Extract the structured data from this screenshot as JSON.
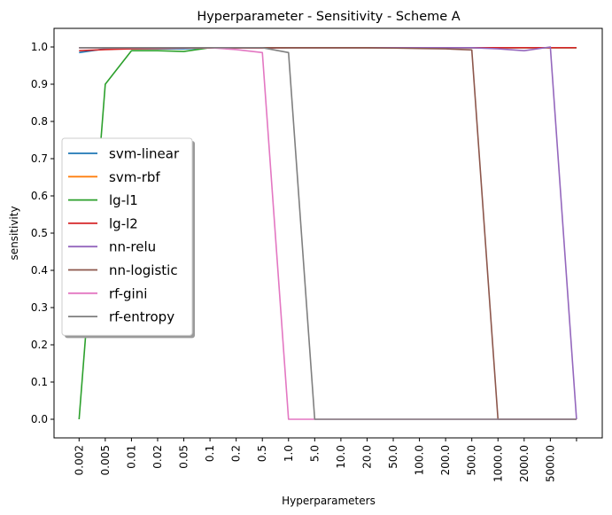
{
  "chart_data": {
    "type": "line",
    "title": "Hyperparameter - Sensitivity - Scheme A",
    "xlabel": "Hyperparameters",
    "ylabel": "sensitivity",
    "x_ticks": [
      "0.002",
      "0.005",
      "0.01",
      "0.02",
      "0.05",
      "0.1",
      "0.2",
      "0.5",
      "1.0",
      "5.0",
      "10.0",
      "20.0",
      "50.0",
      "100.0",
      "200.0",
      "500.0",
      "1000.0",
      "2000.0",
      "5000.0",
      ""
    ],
    "y_ticks": [
      "0.0",
      "0.1",
      "0.2",
      "0.3",
      "0.4",
      "0.5",
      "0.6",
      "0.7",
      "0.8",
      "0.9",
      "1.0"
    ],
    "ylim": [
      -0.05,
      1.05
    ],
    "grid": false,
    "legend_position": "center-left",
    "series": [
      {
        "name": "svm-linear",
        "color": "#1f77b4",
        "values": [
          0.985,
          0.995,
          0.995,
          0.995,
          0.995,
          0.998,
          0.998,
          0.998,
          0.998,
          0.998,
          0.998,
          0.998,
          0.998,
          0.998,
          0.998,
          0.998,
          0.998,
          0.998,
          0.998,
          0.998
        ]
      },
      {
        "name": "svm-rbf",
        "color": "#ff7f0e",
        "values": [
          0.998,
          0.998,
          0.998,
          0.998,
          0.998,
          0.998,
          0.998,
          0.998,
          0.998,
          0.998,
          0.998,
          0.998,
          0.998,
          0.998,
          0.998,
          0.998,
          0.998,
          0.998,
          0.998,
          0.998
        ]
      },
      {
        "name": "lg-l1",
        "color": "#2ca02c",
        "values": [
          0.0,
          0.9,
          0.99,
          0.99,
          0.988,
          0.998,
          0.998,
          0.998,
          0.998,
          0.998,
          0.998,
          0.998,
          0.998,
          0.998,
          0.998,
          0.998,
          0.998,
          0.998,
          0.998,
          0.998
        ]
      },
      {
        "name": "lg-l2",
        "color": "#d62728",
        "values": [
          0.99,
          0.993,
          0.995,
          0.996,
          0.997,
          0.997,
          0.997,
          0.997,
          0.998,
          0.998,
          0.998,
          0.998,
          0.998,
          0.998,
          0.998,
          0.998,
          0.998,
          0.998,
          0.998,
          0.998
        ]
      },
      {
        "name": "nn-relu",
        "color": "#9467bd",
        "values": [
          0.998,
          0.998,
          0.998,
          0.998,
          0.998,
          0.998,
          0.998,
          0.998,
          0.998,
          0.998,
          0.998,
          0.998,
          0.998,
          0.998,
          0.998,
          0.998,
          0.995,
          0.99,
          1.0,
          0.0
        ]
      },
      {
        "name": "nn-logistic",
        "color": "#8c564b",
        "values": [
          0.998,
          0.998,
          0.998,
          0.998,
          0.998,
          0.998,
          0.998,
          0.998,
          0.998,
          0.998,
          0.998,
          0.998,
          0.997,
          0.996,
          0.995,
          0.992,
          0.0,
          0.0,
          0.0,
          0.0
        ]
      },
      {
        "name": "rf-gini",
        "color": "#e377c2",
        "values": [
          0.998,
          0.998,
          0.998,
          0.998,
          0.998,
          0.998,
          0.993,
          0.985,
          0.0,
          0.0,
          0.0,
          0.0,
          0.0,
          0.0,
          0.0,
          0.0,
          0.0,
          0.0,
          0.0,
          0.0
        ]
      },
      {
        "name": "rf-entropy",
        "color": "#7f7f7f",
        "values": [
          0.998,
          0.998,
          0.998,
          0.998,
          0.998,
          0.998,
          0.998,
          0.998,
          0.985,
          0.0,
          0.0,
          0.0,
          0.0,
          0.0,
          0.0,
          0.0,
          0.0,
          0.0,
          0.0,
          0.0
        ]
      }
    ]
  }
}
